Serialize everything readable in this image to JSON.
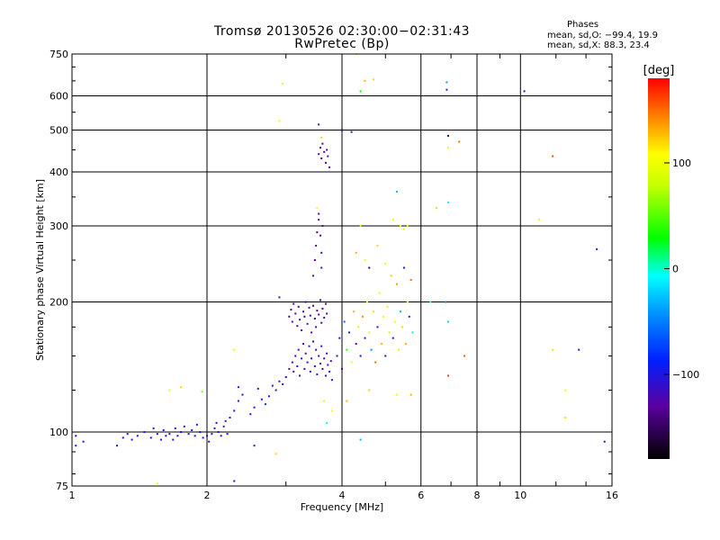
{
  "header": {
    "title_line1": "Tromsø 20130526 02:30:00−02:31:43",
    "title_line2": "RwPretec (Bp)",
    "phases_heading": "Phases",
    "phases_o": "mean, sd,O: −99.4, 19.9",
    "phases_x": "mean, sd,X:  88.3, 23.4"
  },
  "chart_data": {
    "type": "scatter",
    "xlabel": "Frequency [MHz]",
    "ylabel": "Stationary phase Virtual Height [km]",
    "xscale": "log",
    "yscale": "log",
    "xlim": [
      1,
      16
    ],
    "ylim": [
      75,
      750
    ],
    "xticks": [
      1,
      2,
      4,
      6,
      8,
      10,
      16
    ],
    "xtick_labels": [
      "1",
      "2",
      "4",
      "6",
      "8",
      "10",
      "16"
    ],
    "yticks": [
      75,
      100,
      200,
      300,
      400,
      500,
      600,
      750
    ],
    "ytick_labels": [
      "75",
      "100",
      "200",
      "300",
      "400",
      "500",
      "600",
      "750"
    ],
    "grid": true,
    "colorbar": {
      "label": "[deg]",
      "range": [
        -180,
        180
      ],
      "ticks": [
        100,
        0,
        -100
      ],
      "tick_labels": [
        "100",
        "0",
        "−100"
      ]
    },
    "points": [
      {
        "x": 1.02,
        "y": 98,
        "c": -100
      },
      {
        "x": 1.06,
        "y": 95,
        "c": -110
      },
      {
        "x": 1.26,
        "y": 93,
        "c": -100
      },
      {
        "x": 1.3,
        "y": 97,
        "c": -105
      },
      {
        "x": 1.33,
        "y": 99,
        "c": -95
      },
      {
        "x": 1.36,
        "y": 96,
        "c": -110
      },
      {
        "x": 1.4,
        "y": 98,
        "c": -100
      },
      {
        "x": 1.45,
        "y": 100,
        "c": -105
      },
      {
        "x": 1.5,
        "y": 97,
        "c": -100
      },
      {
        "x": 1.52,
        "y": 102,
        "c": -110
      },
      {
        "x": 1.55,
        "y": 99,
        "c": -100
      },
      {
        "x": 1.58,
        "y": 96,
        "c": -100
      },
      {
        "x": 1.6,
        "y": 101,
        "c": -95
      },
      {
        "x": 1.62,
        "y": 98,
        "c": -120
      },
      {
        "x": 1.65,
        "y": 99,
        "c": -100
      },
      {
        "x": 1.68,
        "y": 96,
        "c": -100
      },
      {
        "x": 1.7,
        "y": 102,
        "c": -105
      },
      {
        "x": 1.72,
        "y": 98,
        "c": -95
      },
      {
        "x": 1.75,
        "y": 100,
        "c": -110
      },
      {
        "x": 1.78,
        "y": 103,
        "c": -100
      },
      {
        "x": 1.82,
        "y": 99,
        "c": -100
      },
      {
        "x": 1.85,
        "y": 101,
        "c": -115
      },
      {
        "x": 1.88,
        "y": 98,
        "c": -100
      },
      {
        "x": 1.9,
        "y": 104,
        "c": -100
      },
      {
        "x": 1.93,
        "y": 100,
        "c": -95
      },
      {
        "x": 1.96,
        "y": 97,
        "c": -100
      },
      {
        "x": 2.0,
        "y": 98,
        "c": -110
      },
      {
        "x": 2.02,
        "y": 95,
        "c": -100
      },
      {
        "x": 2.05,
        "y": 99,
        "c": -100
      },
      {
        "x": 2.08,
        "y": 102,
        "c": -95
      },
      {
        "x": 2.1,
        "y": 105,
        "c": -100
      },
      {
        "x": 2.12,
        "y": 100,
        "c": -105
      },
      {
        "x": 2.15,
        "y": 98,
        "c": -100
      },
      {
        "x": 2.18,
        "y": 103,
        "c": -100
      },
      {
        "x": 2.2,
        "y": 106,
        "c": -110
      },
      {
        "x": 2.22,
        "y": 99,
        "c": -100
      },
      {
        "x": 2.25,
        "y": 108,
        "c": -100
      },
      {
        "x": 2.3,
        "y": 112,
        "c": -105
      },
      {
        "x": 2.35,
        "y": 118,
        "c": -100
      },
      {
        "x": 2.4,
        "y": 122,
        "c": -110
      },
      {
        "x": 2.5,
        "y": 110,
        "c": -90
      },
      {
        "x": 2.55,
        "y": 114,
        "c": -105
      },
      {
        "x": 2.6,
        "y": 126,
        "c": -100
      },
      {
        "x": 2.65,
        "y": 119,
        "c": -100
      },
      {
        "x": 2.7,
        "y": 116,
        "c": -80
      },
      {
        "x": 2.75,
        "y": 121,
        "c": -95
      },
      {
        "x": 2.8,
        "y": 128,
        "c": -100
      },
      {
        "x": 2.85,
        "y": 125,
        "c": -110
      },
      {
        "x": 2.9,
        "y": 131,
        "c": -100
      },
      {
        "x": 2.95,
        "y": 129,
        "c": -100
      },
      {
        "x": 3.0,
        "y": 134,
        "c": -105
      },
      {
        "x": 3.05,
        "y": 140,
        "c": -130
      },
      {
        "x": 3.1,
        "y": 145,
        "c": -120
      },
      {
        "x": 3.12,
        "y": 138,
        "c": -110
      },
      {
        "x": 3.15,
        "y": 150,
        "c": -125
      },
      {
        "x": 3.18,
        "y": 142,
        "c": -100
      },
      {
        "x": 3.2,
        "y": 155,
        "c": -130
      },
      {
        "x": 3.22,
        "y": 135,
        "c": -115
      },
      {
        "x": 3.25,
        "y": 148,
        "c": -100
      },
      {
        "x": 3.28,
        "y": 160,
        "c": -120
      },
      {
        "x": 3.3,
        "y": 140,
        "c": -110
      },
      {
        "x": 3.32,
        "y": 152,
        "c": -130
      },
      {
        "x": 3.35,
        "y": 145,
        "c": -100
      },
      {
        "x": 3.38,
        "y": 158,
        "c": -120
      },
      {
        "x": 3.4,
        "y": 138,
        "c": -110
      },
      {
        "x": 3.42,
        "y": 148,
        "c": -100
      },
      {
        "x": 3.45,
        "y": 162,
        "c": -125
      },
      {
        "x": 3.48,
        "y": 142,
        "c": -110
      },
      {
        "x": 3.5,
        "y": 155,
        "c": -130
      },
      {
        "x": 3.52,
        "y": 136,
        "c": -100
      },
      {
        "x": 3.55,
        "y": 150,
        "c": -120
      },
      {
        "x": 3.58,
        "y": 144,
        "c": -110
      },
      {
        "x": 3.6,
        "y": 158,
        "c": -100
      },
      {
        "x": 3.62,
        "y": 140,
        "c": -130
      },
      {
        "x": 3.65,
        "y": 148,
        "c": -115
      },
      {
        "x": 3.68,
        "y": 135,
        "c": -100
      },
      {
        "x": 3.7,
        "y": 152,
        "c": -120
      },
      {
        "x": 3.72,
        "y": 143,
        "c": -110
      },
      {
        "x": 3.75,
        "y": 138,
        "c": -100
      },
      {
        "x": 3.78,
        "y": 146,
        "c": -125
      },
      {
        "x": 3.8,
        "y": 132,
        "c": -110
      },
      {
        "x": 3.05,
        "y": 185,
        "c": -140
      },
      {
        "x": 3.08,
        "y": 192,
        "c": -130
      },
      {
        "x": 3.1,
        "y": 180,
        "c": -120
      },
      {
        "x": 3.12,
        "y": 198,
        "c": -135
      },
      {
        "x": 3.15,
        "y": 188,
        "c": -125
      },
      {
        "x": 3.18,
        "y": 176,
        "c": -130
      },
      {
        "x": 3.2,
        "y": 195,
        "c": -140
      },
      {
        "x": 3.22,
        "y": 182,
        "c": -120
      },
      {
        "x": 3.25,
        "y": 172,
        "c": -130
      },
      {
        "x": 3.28,
        "y": 190,
        "c": -125
      },
      {
        "x": 3.3,
        "y": 185,
        "c": -140
      },
      {
        "x": 3.32,
        "y": 200,
        "c": -120
      },
      {
        "x": 3.35,
        "y": 178,
        "c": -130
      },
      {
        "x": 3.38,
        "y": 194,
        "c": -135
      },
      {
        "x": 3.4,
        "y": 186,
        "c": -120
      },
      {
        "x": 3.42,
        "y": 170,
        "c": -130
      },
      {
        "x": 3.45,
        "y": 196,
        "c": -125
      },
      {
        "x": 3.48,
        "y": 183,
        "c": -140
      },
      {
        "x": 3.5,
        "y": 175,
        "c": -120
      },
      {
        "x": 3.52,
        "y": 191,
        "c": -130
      },
      {
        "x": 3.55,
        "y": 187,
        "c": -125
      },
      {
        "x": 3.58,
        "y": 202,
        "c": -135
      },
      {
        "x": 3.6,
        "y": 179,
        "c": -120
      },
      {
        "x": 3.62,
        "y": 193,
        "c": -130
      },
      {
        "x": 3.65,
        "y": 184,
        "c": -140
      },
      {
        "x": 3.68,
        "y": 198,
        "c": -125
      },
      {
        "x": 3.7,
        "y": 188,
        "c": -130
      },
      {
        "x": 3.45,
        "y": 230,
        "c": -120
      },
      {
        "x": 3.48,
        "y": 250,
        "c": -130
      },
      {
        "x": 3.5,
        "y": 270,
        "c": -125
      },
      {
        "x": 3.52,
        "y": 290,
        "c": -130
      },
      {
        "x": 3.55,
        "y": 310,
        "c": -120
      },
      {
        "x": 3.58,
        "y": 285,
        "c": -130
      },
      {
        "x": 3.6,
        "y": 260,
        "c": -125
      },
      {
        "x": 3.62,
        "y": 300,
        "c": -130
      },
      {
        "x": 3.55,
        "y": 320,
        "c": -120
      },
      {
        "x": 3.52,
        "y": 330,
        "c": 110
      },
      {
        "x": 3.6,
        "y": 240,
        "c": -110
      },
      {
        "x": 3.55,
        "y": 440,
        "c": -130
      },
      {
        "x": 3.58,
        "y": 455,
        "c": -125
      },
      {
        "x": 3.6,
        "y": 430,
        "c": -130
      },
      {
        "x": 3.62,
        "y": 465,
        "c": -120
      },
      {
        "x": 3.65,
        "y": 445,
        "c": -130
      },
      {
        "x": 3.68,
        "y": 420,
        "c": -125
      },
      {
        "x": 3.7,
        "y": 450,
        "c": -130
      },
      {
        "x": 3.72,
        "y": 435,
        "c": -120
      },
      {
        "x": 3.75,
        "y": 410,
        "c": -130
      },
      {
        "x": 3.55,
        "y": 515,
        "c": -120
      },
      {
        "x": 3.6,
        "y": 480,
        "c": 120
      },
      {
        "x": 3.9,
        "y": 150,
        "c": -100
      },
      {
        "x": 3.95,
        "y": 165,
        "c": -90
      },
      {
        "x": 4.0,
        "y": 140,
        "c": -120
      },
      {
        "x": 4.05,
        "y": 180,
        "c": -60
      },
      {
        "x": 4.1,
        "y": 155,
        "c": 40
      },
      {
        "x": 4.15,
        "y": 170,
        "c": -100
      },
      {
        "x": 4.2,
        "y": 145,
        "c": 100
      },
      {
        "x": 4.25,
        "y": 190,
        "c": 130
      },
      {
        "x": 4.3,
        "y": 160,
        "c": -130
      },
      {
        "x": 4.35,
        "y": 175,
        "c": 90
      },
      {
        "x": 4.4,
        "y": 150,
        "c": -100
      },
      {
        "x": 4.45,
        "y": 185,
        "c": 140
      },
      {
        "x": 4.5,
        "y": 165,
        "c": -120
      },
      {
        "x": 4.55,
        "y": 200,
        "c": 110
      },
      {
        "x": 4.6,
        "y": 170,
        "c": 95
      },
      {
        "x": 4.65,
        "y": 155,
        "c": -40
      },
      {
        "x": 4.7,
        "y": 190,
        "c": 120
      },
      {
        "x": 4.75,
        "y": 145,
        "c": 150
      },
      {
        "x": 4.8,
        "y": 175,
        "c": -110
      },
      {
        "x": 4.85,
        "y": 210,
        "c": 100
      },
      {
        "x": 4.9,
        "y": 160,
        "c": 130
      },
      {
        "x": 4.95,
        "y": 185,
        "c": 105
      },
      {
        "x": 5.0,
        "y": 150,
        "c": -100
      },
      {
        "x": 5.05,
        "y": 195,
        "c": 115
      },
      {
        "x": 5.1,
        "y": 170,
        "c": 80
      },
      {
        "x": 5.15,
        "y": 230,
        "c": 125
      },
      {
        "x": 5.2,
        "y": 165,
        "c": -90
      },
      {
        "x": 5.25,
        "y": 180,
        "c": 110
      },
      {
        "x": 5.3,
        "y": 220,
        "c": 140
      },
      {
        "x": 5.35,
        "y": 155,
        "c": 100
      },
      {
        "x": 5.4,
        "y": 190,
        "c": -30
      },
      {
        "x": 5.45,
        "y": 175,
        "c": 120
      },
      {
        "x": 5.5,
        "y": 240,
        "c": -120
      },
      {
        "x": 5.55,
        "y": 160,
        "c": 130
      },
      {
        "x": 5.6,
        "y": 200,
        "c": 100
      },
      {
        "x": 5.65,
        "y": 185,
        "c": -100
      },
      {
        "x": 5.7,
        "y": 225,
        "c": 150
      },
      {
        "x": 5.75,
        "y": 170,
        "c": 0
      },
      {
        "x": 4.3,
        "y": 260,
        "c": 130
      },
      {
        "x": 4.5,
        "y": 250,
        "c": 110
      },
      {
        "x": 4.6,
        "y": 240,
        "c": -150
      },
      {
        "x": 4.8,
        "y": 270,
        "c": 120
      },
      {
        "x": 5.0,
        "y": 245,
        "c": 100
      },
      {
        "x": 5.2,
        "y": 310,
        "c": 110
      },
      {
        "x": 5.4,
        "y": 300,
        "c": 95
      },
      {
        "x": 5.5,
        "y": 295,
        "c": 105
      },
      {
        "x": 5.6,
        "y": 300,
        "c": 90
      },
      {
        "x": 4.4,
        "y": 300,
        "c": 80
      },
      {
        "x": 5.3,
        "y": 360,
        "c": -30
      },
      {
        "x": 4.0,
        "y": 500,
        "c": -140
      },
      {
        "x": 4.2,
        "y": 495,
        "c": -100
      },
      {
        "x": 4.4,
        "y": 615,
        "c": 30
      },
      {
        "x": 4.5,
        "y": 650,
        "c": 130
      },
      {
        "x": 4.7,
        "y": 655,
        "c": 120
      },
      {
        "x": 4.3,
        "y": 750,
        "c": 110
      },
      {
        "x": 2.95,
        "y": 640,
        "c": 110
      },
      {
        "x": 2.9,
        "y": 525,
        "c": 110
      },
      {
        "x": 3.65,
        "y": 118,
        "c": 110
      },
      {
        "x": 3.8,
        "y": 112,
        "c": 110
      },
      {
        "x": 3.7,
        "y": 105,
        "c": -10
      },
      {
        "x": 4.1,
        "y": 118,
        "c": 130
      },
      {
        "x": 4.4,
        "y": 96,
        "c": -30
      },
      {
        "x": 4.6,
        "y": 125,
        "c": 120
      },
      {
        "x": 5.3,
        "y": 122,
        "c": 110
      },
      {
        "x": 5.7,
        "y": 122,
        "c": 130
      },
      {
        "x": 6.3,
        "y": 200,
        "c": -10
      },
      {
        "x": 6.5,
        "y": 330,
        "c": 120
      },
      {
        "x": 6.9,
        "y": 340,
        "c": -10
      },
      {
        "x": 6.8,
        "y": 200,
        "c": -50
      },
      {
        "x": 6.9,
        "y": 135,
        "c": 160
      },
      {
        "x": 6.9,
        "y": 180,
        "c": -20
      },
      {
        "x": 6.85,
        "y": 620,
        "c": -100
      },
      {
        "x": 6.85,
        "y": 645,
        "c": -40
      },
      {
        "x": 6.9,
        "y": 485,
        "c": -150
      },
      {
        "x": 6.9,
        "y": 455,
        "c": 110
      },
      {
        "x": 7.3,
        "y": 470,
        "c": 150
      },
      {
        "x": 7.5,
        "y": 150,
        "c": 155
      },
      {
        "x": 10.2,
        "y": 615,
        "c": -100
      },
      {
        "x": 11.0,
        "y": 310,
        "c": 110
      },
      {
        "x": 11.8,
        "y": 435,
        "c": 160
      },
      {
        "x": 11.8,
        "y": 155,
        "c": 80
      },
      {
        "x": 12.6,
        "y": 125,
        "c": 110
      },
      {
        "x": 12.6,
        "y": 108,
        "c": 120
      },
      {
        "x": 13.5,
        "y": 155,
        "c": -100
      },
      {
        "x": 14.8,
        "y": 265,
        "c": -100
      },
      {
        "x": 15.4,
        "y": 95,
        "c": -100
      },
      {
        "x": 1.65,
        "y": 125,
        "c": 110
      },
      {
        "x": 1.75,
        "y": 127,
        "c": 120
      },
      {
        "x": 1.95,
        "y": 124,
        "c": 60
      },
      {
        "x": 2.3,
        "y": 155,
        "c": 110
      },
      {
        "x": 2.35,
        "y": 127,
        "c": -100
      },
      {
        "x": 2.55,
        "y": 93,
        "c": -100
      },
      {
        "x": 2.85,
        "y": 89,
        "c": 120
      },
      {
        "x": 2.3,
        "y": 77,
        "c": -100
      },
      {
        "x": 1.55,
        "y": 76,
        "c": 110
      },
      {
        "x": 2.9,
        "y": 205,
        "c": -100
      },
      {
        "x": 1.02,
        "y": 93,
        "c": -100
      }
    ]
  }
}
